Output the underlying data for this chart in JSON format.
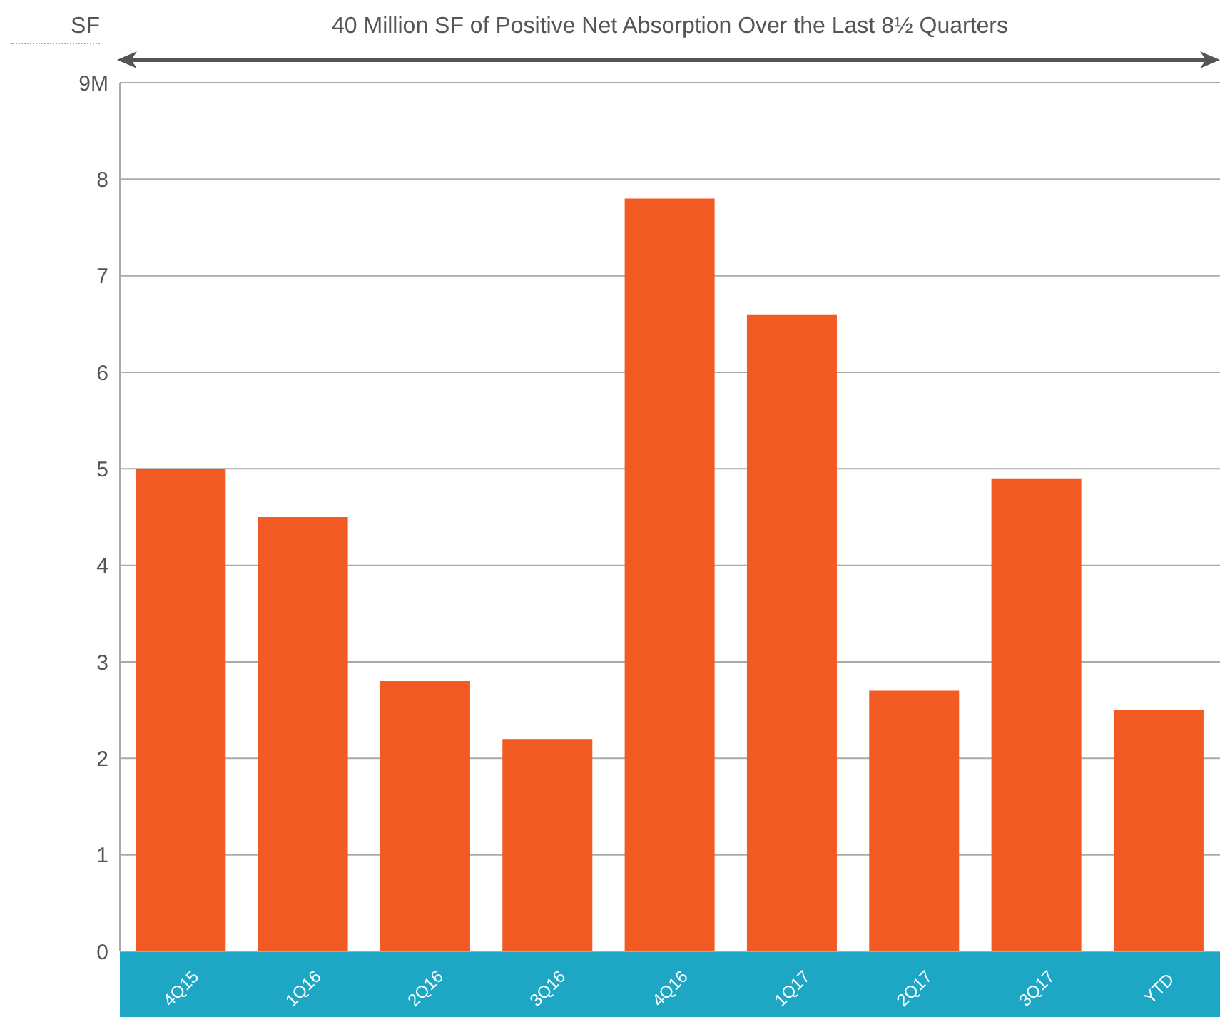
{
  "chart_data": {
    "type": "bar",
    "title": "40 Million SF of Positive Net Absorption Over the Last 8½ Quarters",
    "ylabel": "SF",
    "categories": [
      "4Q15",
      "1Q16",
      "2Q16",
      "3Q16",
      "4Q16",
      "1Q17",
      "2Q17",
      "3Q17",
      "YTD"
    ],
    "values": [
      5.0,
      4.5,
      2.8,
      2.2,
      7.8,
      6.6,
      2.7,
      4.9,
      2.5
    ],
    "color": "#f15a22",
    "ylim": [
      0,
      9
    ],
    "yticks": [
      0,
      1,
      2,
      3,
      4,
      5,
      6,
      7,
      8,
      {
        "value": 9,
        "label": "9M"
      }
    ],
    "grid": "y",
    "legend": false
  }
}
